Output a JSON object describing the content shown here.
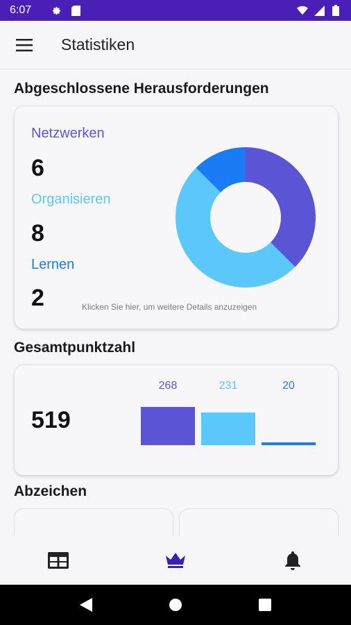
{
  "status_bar": {
    "time": "6:07",
    "icons": [
      "gear-icon",
      "sd-card-icon",
      "wifi-icon",
      "signal-icon",
      "battery-icon"
    ],
    "background": "#4a1fb8"
  },
  "app_bar": {
    "title": "Statistiken",
    "menu_icon": "hamburger-menu-icon"
  },
  "challenges": {
    "title": "Abgeschlossene Herausforderungen",
    "categories": [
      {
        "label": "Netzwerken",
        "value": "6",
        "color": "#5b55d6"
      },
      {
        "label": "Organisieren",
        "value": "8",
        "color": "#5ac8fa"
      },
      {
        "label": "Lernen",
        "value": "2",
        "color": "#1a7cf5"
      }
    ],
    "hint": "Klicken Sie hier, um weitere Details anzuzeigen"
  },
  "chart_data": [
    {
      "type": "pie",
      "donut": true,
      "categories": [
        "Netzwerken",
        "Organisieren",
        "Lernen"
      ],
      "values": [
        6,
        8,
        2
      ],
      "colors": [
        "#5b55d6",
        "#5ac8fa",
        "#1a7cf5"
      ]
    },
    {
      "type": "bar",
      "categories": [
        "Netzwerken",
        "Organisieren",
        "Lernen"
      ],
      "values": [
        268,
        231,
        20
      ],
      "colors": [
        "#5b55d6",
        "#5ac8fa",
        "#1a7cf5"
      ]
    }
  ],
  "score": {
    "title": "Gesamtpunktzahl",
    "total": "519",
    "bar_labels": [
      "268",
      "231",
      "20"
    ]
  },
  "badges": {
    "title": "Abzeichen"
  },
  "bottom_nav": {
    "items": [
      {
        "icon": "table-grid-icon",
        "active": false
      },
      {
        "icon": "crown-icon",
        "active": true
      },
      {
        "icon": "bell-icon",
        "active": false
      }
    ],
    "active_color": "#3a1fb0"
  },
  "system_nav": {
    "icons": [
      "back-icon",
      "home-icon",
      "recents-icon"
    ]
  }
}
